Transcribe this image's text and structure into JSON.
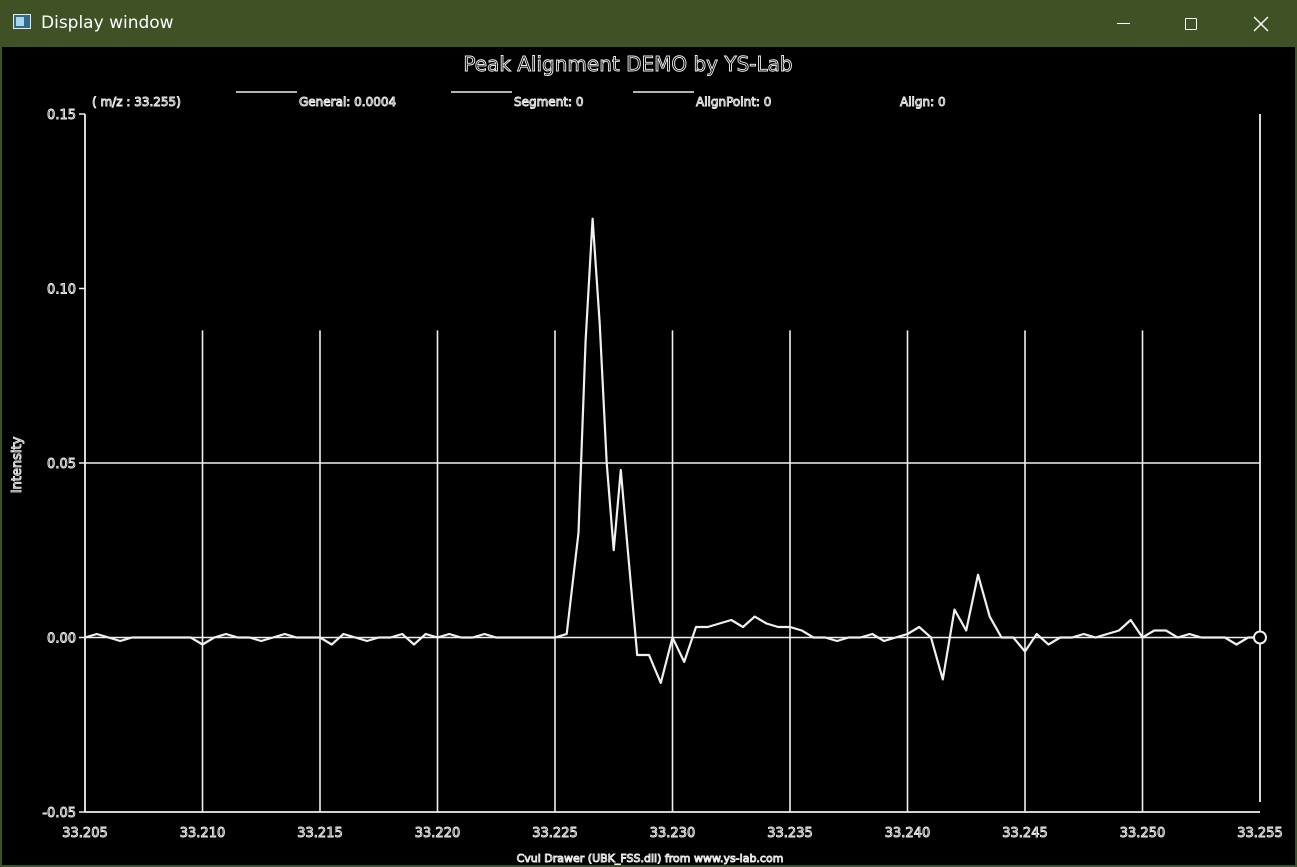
{
  "window": {
    "title": "Display window",
    "icon": "app-window-icon",
    "controls": {
      "minimize": "minimize-icon",
      "maximize": "maximize-icon",
      "close": "close-icon"
    },
    "frame_color": "#3e5225"
  },
  "chart_data": {
    "type": "line",
    "title": "Peak Alignment DEMO by YS-Lab",
    "ylabel": "Intensity",
    "footer": "Cvui Drawer (UBK_FSS.dll) from www.ys-lab.com",
    "legend": {
      "placement": "top",
      "items": [
        {
          "text": "( m/z : 33.255)",
          "has_line": false
        },
        {
          "text": "General: 0.0004",
          "has_line": true
        },
        {
          "text": "Segment: 0",
          "has_line": true
        },
        {
          "text": "AlignPoint: 0",
          "has_line": true
        },
        {
          "text": "Align: 0",
          "has_line": false
        }
      ]
    },
    "xlim": [
      33.205,
      33.255
    ],
    "ylim": [
      -0.05,
      0.15
    ],
    "x_ticks": [
      "33.205",
      "33.210",
      "33.215",
      "33.220",
      "33.225",
      "33.230",
      "33.235",
      "33.240",
      "33.245",
      "33.250",
      "33.255"
    ],
    "y_ticks": [
      "0.15",
      "0.10",
      "0.05",
      "0.00",
      "-0.05"
    ],
    "grid": true,
    "background": "#000000",
    "line_color": "#f0f0f0",
    "series": [
      {
        "x": [
          33.205,
          33.2055,
          33.206,
          33.2065,
          33.207,
          33.2075,
          33.208,
          33.2085,
          33.209,
          33.2095,
          33.21,
          33.2105,
          33.211,
          33.2115,
          33.212,
          33.2125,
          33.213,
          33.2135,
          33.214,
          33.2145,
          33.215,
          33.2155,
          33.216,
          33.2165,
          33.217,
          33.2175,
          33.218,
          33.2185,
          33.219,
          33.2195,
          33.22,
          33.2205,
          33.221,
          33.2215,
          33.222,
          33.2225,
          33.223,
          33.2235,
          33.224,
          33.2245,
          33.225,
          33.2255,
          33.226,
          33.2263,
          33.2266,
          33.2269,
          33.2272,
          33.2275,
          33.2278,
          33.2281,
          33.2285,
          33.229,
          33.2295,
          33.23,
          33.2305,
          33.231,
          33.2315,
          33.232,
          33.2325,
          33.233,
          33.2335,
          33.234,
          33.2345,
          33.235,
          33.2355,
          33.236,
          33.2365,
          33.237,
          33.2375,
          33.238,
          33.2385,
          33.239,
          33.2395,
          33.24,
          33.2405,
          33.241,
          33.2415,
          33.242,
          33.2425,
          33.243,
          33.2435,
          33.244,
          33.2445,
          33.245,
          33.2455,
          33.246,
          33.2465,
          33.247,
          33.2475,
          33.248,
          33.2485,
          33.249,
          33.2495,
          33.25,
          33.2505,
          33.251,
          33.2515,
          33.252,
          33.2525,
          33.253,
          33.2535,
          33.254,
          33.2545,
          33.255
        ],
        "y": [
          0.0,
          0.001,
          0.0,
          -0.001,
          0.0,
          0.0,
          0.0,
          0.0,
          0.0,
          0.0,
          -0.002,
          0.0,
          0.001,
          0.0,
          0.0,
          -0.001,
          0.0,
          0.001,
          0.0,
          0.0,
          0.0,
          -0.002,
          0.001,
          0.0,
          -0.001,
          0.0,
          0.0,
          0.001,
          -0.002,
          0.001,
          0.0,
          0.001,
          0.0,
          0.0,
          0.001,
          0.0,
          0.0,
          0.0,
          0.0,
          0.0,
          0.0,
          0.001,
          0.03,
          0.085,
          0.12,
          0.09,
          0.05,
          0.025,
          0.048,
          0.025,
          -0.005,
          -0.005,
          -0.013,
          0.0,
          -0.007,
          0.003,
          0.003,
          0.004,
          0.005,
          0.003,
          0.006,
          0.004,
          0.003,
          0.003,
          0.002,
          0.0,
          0.0,
          -0.001,
          0.0,
          0.0,
          0.001,
          -0.001,
          0.0,
          0.001,
          0.003,
          0.0,
          -0.012,
          0.008,
          0.002,
          0.018,
          0.006,
          0.0,
          0.0,
          -0.004,
          0.001,
          -0.002,
          0.0,
          0.0,
          0.001,
          0.0,
          0.001,
          0.002,
          0.005,
          0.0,
          0.002,
          0.002,
          0.0,
          0.001,
          0.0,
          0.0,
          0.0,
          -0.002,
          0.0,
          0.0
        ]
      }
    ]
  }
}
